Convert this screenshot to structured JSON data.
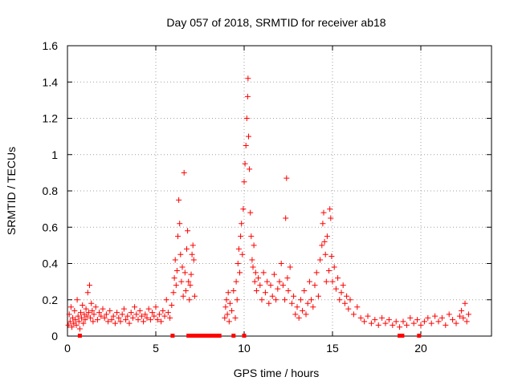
{
  "chart_data": {
    "type": "scatter",
    "title": "Day 057 of 2018, SRMTID for receiver ab18",
    "xlabel": "GPS time / hours",
    "ylabel": "SRMTID / TECUs",
    "xlim": [
      0,
      24
    ],
    "ylim": [
      0,
      1.6
    ],
    "x_ticks": [
      0,
      5,
      10,
      15,
      20
    ],
    "x_tick_labels": [
      "0",
      "5",
      "10",
      "15",
      "20"
    ],
    "y_ticks": [
      0,
      0.2,
      0.4,
      0.6,
      0.8,
      1.0,
      1.2,
      1.4,
      1.6
    ],
    "y_tick_labels": [
      "0",
      "0.2",
      "0.4",
      "0.6",
      "0.8",
      "1",
      "1.2",
      "1.4",
      "1.6"
    ],
    "grid": true,
    "marker": "+",
    "color": "#ff0000",
    "series": [
      {
        "name": "SRMTID",
        "points": [
          [
            0.05,
            0.06
          ],
          [
            0.1,
            0.12
          ],
          [
            0.15,
            0.08
          ],
          [
            0.2,
            0.16
          ],
          [
            0.25,
            0.05
          ],
          [
            0.3,
            0.1
          ],
          [
            0.35,
            0.07
          ],
          [
            0.4,
            0.14
          ],
          [
            0.45,
            0.09
          ],
          [
            0.5,
            0.06
          ],
          [
            0.55,
            0.2
          ],
          [
            0.6,
            0.11
          ],
          [
            0.65,
            0.08
          ],
          [
            0.7,
            0.04
          ],
          [
            0.75,
            0.13
          ],
          [
            0.8,
            0.1
          ],
          [
            0.85,
            0.17
          ],
          [
            0.9,
            0.07
          ],
          [
            0.95,
            0.12
          ],
          [
            1.0,
            0.09
          ],
          [
            1.05,
            0.15
          ],
          [
            1.1,
            0.11
          ],
          [
            1.15,
            0.24
          ],
          [
            1.2,
            0.13
          ],
          [
            1.25,
            0.28
          ],
          [
            1.3,
            0.1
          ],
          [
            1.35,
            0.18
          ],
          [
            1.4,
            0.14
          ],
          [
            1.45,
            0.08
          ],
          [
            1.5,
            0.12
          ],
          [
            1.6,
            0.16
          ],
          [
            1.7,
            0.09
          ],
          [
            1.8,
            0.13
          ],
          [
            1.9,
            0.11
          ],
          [
            2.0,
            0.15
          ],
          [
            2.1,
            0.1
          ],
          [
            2.2,
            0.12
          ],
          [
            2.3,
            0.08
          ],
          [
            2.4,
            0.14
          ],
          [
            2.5,
            0.09
          ],
          [
            2.6,
            0.11
          ],
          [
            2.7,
            0.07
          ],
          [
            2.8,
            0.13
          ],
          [
            2.9,
            0.1
          ],
          [
            3.0,
            0.08
          ],
          [
            3.1,
            0.12
          ],
          [
            3.2,
            0.15
          ],
          [
            3.3,
            0.09
          ],
          [
            3.4,
            0.11
          ],
          [
            3.5,
            0.07
          ],
          [
            3.6,
            0.13
          ],
          [
            3.7,
            0.1
          ],
          [
            3.8,
            0.16
          ],
          [
            3.9,
            0.12
          ],
          [
            4.0,
            0.09
          ],
          [
            4.1,
            0.14
          ],
          [
            4.2,
            0.11
          ],
          [
            4.3,
            0.08
          ],
          [
            4.4,
            0.12
          ],
          [
            4.5,
            0.1
          ],
          [
            4.6,
            0.15
          ],
          [
            4.7,
            0.09
          ],
          [
            4.8,
            0.13
          ],
          [
            4.9,
            0.11
          ],
          [
            5.0,
            0.16
          ],
          [
            5.1,
            0.09
          ],
          [
            5.2,
            0.12
          ],
          [
            5.3,
            0.08
          ],
          [
            5.4,
            0.14
          ],
          [
            5.5,
            0.11
          ],
          [
            5.6,
            0.2
          ],
          [
            5.7,
            0.13
          ],
          [
            5.8,
            0.1
          ],
          [
            5.9,
            0.17
          ],
          [
            6.0,
            0.24
          ],
          [
            6.05,
            0.32
          ],
          [
            6.1,
            0.42
          ],
          [
            6.15,
            0.28
          ],
          [
            6.2,
            0.36
          ],
          [
            6.25,
            0.55
          ],
          [
            6.3,
            0.75
          ],
          [
            6.35,
            0.62
          ],
          [
            6.4,
            0.45
          ],
          [
            6.45,
            0.3
          ],
          [
            6.5,
            0.38
          ],
          [
            6.55,
            0.22
          ],
          [
            6.6,
            0.9
          ],
          [
            6.65,
            0.35
          ],
          [
            6.7,
            0.25
          ],
          [
            6.75,
            0.48
          ],
          [
            6.8,
            0.58
          ],
          [
            6.85,
            0.3
          ],
          [
            6.9,
            0.2
          ],
          [
            6.95,
            0.28
          ],
          [
            7.0,
            0.34
          ],
          [
            7.05,
            0.45
          ],
          [
            7.1,
            0.5
          ],
          [
            7.15,
            0.42
          ],
          [
            7.2,
            0.22
          ],
          [
            8.9,
            0.1
          ],
          [
            8.95,
            0.16
          ],
          [
            9.0,
            0.2
          ],
          [
            9.05,
            0.12
          ],
          [
            9.1,
            0.24
          ],
          [
            9.15,
            0.08
          ],
          [
            9.2,
            0.18
          ],
          [
            9.3,
            0.14
          ],
          [
            9.4,
            0.25
          ],
          [
            9.5,
            0.1
          ],
          [
            9.55,
            0.3
          ],
          [
            9.6,
            0.2
          ],
          [
            9.65,
            0.4
          ],
          [
            9.7,
            0.48
          ],
          [
            9.75,
            0.35
          ],
          [
            9.8,
            0.55
          ],
          [
            9.85,
            0.62
          ],
          [
            9.9,
            0.45
          ],
          [
            9.95,
            0.7
          ],
          [
            10.0,
            0.85
          ],
          [
            10.05,
            0.95
          ],
          [
            10.1,
            1.05
          ],
          [
            10.15,
            1.2
          ],
          [
            10.2,
            1.32
          ],
          [
            10.22,
            1.42
          ],
          [
            10.25,
            1.1
          ],
          [
            10.3,
            0.92
          ],
          [
            10.35,
            0.68
          ],
          [
            10.4,
            0.55
          ],
          [
            10.45,
            0.42
          ],
          [
            10.5,
            0.38
          ],
          [
            10.55,
            0.5
          ],
          [
            10.6,
            0.3
          ],
          [
            10.65,
            0.35
          ],
          [
            10.7,
            0.25
          ],
          [
            10.8,
            0.32
          ],
          [
            10.9,
            0.28
          ],
          [
            11.0,
            0.2
          ],
          [
            11.1,
            0.35
          ],
          [
            11.2,
            0.24
          ],
          [
            11.3,
            0.3
          ],
          [
            11.4,
            0.18
          ],
          [
            11.5,
            0.28
          ],
          [
            11.6,
            0.22
          ],
          [
            11.7,
            0.34
          ],
          [
            11.8,
            0.2
          ],
          [
            11.9,
            0.26
          ],
          [
            12.0,
            0.3
          ],
          [
            12.1,
            0.4
          ],
          [
            12.2,
            0.28
          ],
          [
            12.3,
            0.2
          ],
          [
            12.35,
            0.65
          ],
          [
            12.4,
            0.87
          ],
          [
            12.45,
            0.32
          ],
          [
            12.5,
            0.25
          ],
          [
            12.6,
            0.38
          ],
          [
            12.7,
            0.18
          ],
          [
            12.8,
            0.22
          ],
          [
            12.9,
            0.12
          ],
          [
            13.0,
            0.16
          ],
          [
            13.1,
            0.1
          ],
          [
            13.2,
            0.2
          ],
          [
            13.3,
            0.14
          ],
          [
            13.4,
            0.25
          ],
          [
            13.5,
            0.12
          ],
          [
            13.6,
            0.18
          ],
          [
            13.7,
            0.3
          ],
          [
            13.8,
            0.2
          ],
          [
            13.9,
            0.16
          ],
          [
            14.0,
            0.28
          ],
          [
            14.1,
            0.35
          ],
          [
            14.2,
            0.22
          ],
          [
            14.3,
            0.42
          ],
          [
            14.4,
            0.5
          ],
          [
            14.45,
            0.62
          ],
          [
            14.5,
            0.68
          ],
          [
            14.55,
            0.52
          ],
          [
            14.6,
            0.45
          ],
          [
            14.65,
            0.3
          ],
          [
            14.7,
            0.55
          ],
          [
            14.8,
            0.36
          ],
          [
            14.85,
            0.7
          ],
          [
            14.9,
            0.65
          ],
          [
            14.95,
            0.44
          ],
          [
            15.0,
            0.3
          ],
          [
            15.1,
            0.38
          ],
          [
            15.2,
            0.26
          ],
          [
            15.3,
            0.32
          ],
          [
            15.4,
            0.2
          ],
          [
            15.5,
            0.24
          ],
          [
            15.6,
            0.28
          ],
          [
            15.7,
            0.18
          ],
          [
            15.8,
            0.22
          ],
          [
            15.9,
            0.15
          ],
          [
            16.0,
            0.2
          ],
          [
            16.2,
            0.12
          ],
          [
            16.4,
            0.16
          ],
          [
            16.6,
            0.1
          ],
          [
            16.8,
            0.08
          ],
          [
            17.0,
            0.11
          ],
          [
            17.2,
            0.07
          ],
          [
            17.4,
            0.09
          ],
          [
            17.6,
            0.06
          ],
          [
            17.8,
            0.1
          ],
          [
            18.0,
            0.07
          ],
          [
            18.2,
            0.09
          ],
          [
            18.4,
            0.06
          ],
          [
            18.6,
            0.08
          ],
          [
            18.8,
            0.05
          ],
          [
            19.0,
            0.08
          ],
          [
            19.2,
            0.06
          ],
          [
            19.4,
            0.1
          ],
          [
            19.6,
            0.07
          ],
          [
            19.8,
            0.09
          ],
          [
            20.0,
            0.06
          ],
          [
            20.2,
            0.08
          ],
          [
            20.4,
            0.1
          ],
          [
            20.6,
            0.07
          ],
          [
            20.8,
            0.11
          ],
          [
            21.0,
            0.08
          ],
          [
            21.2,
            0.1
          ],
          [
            21.4,
            0.06
          ],
          [
            21.6,
            0.12
          ],
          [
            21.8,
            0.09
          ],
          [
            22.0,
            0.07
          ],
          [
            22.2,
            0.11
          ],
          [
            22.3,
            0.14
          ],
          [
            22.4,
            0.1
          ],
          [
            22.5,
            0.18
          ],
          [
            22.6,
            0.08
          ],
          [
            22.7,
            0.12
          ]
        ]
      }
    ],
    "zero_markers_x": [
      0.7,
      5.95,
      6.85,
      7.0,
      7.2,
      7.4,
      7.6,
      7.8,
      8.0,
      8.2,
      8.4,
      8.6,
      9.4,
      10.0,
      18.8,
      18.95,
      19.9
    ]
  }
}
